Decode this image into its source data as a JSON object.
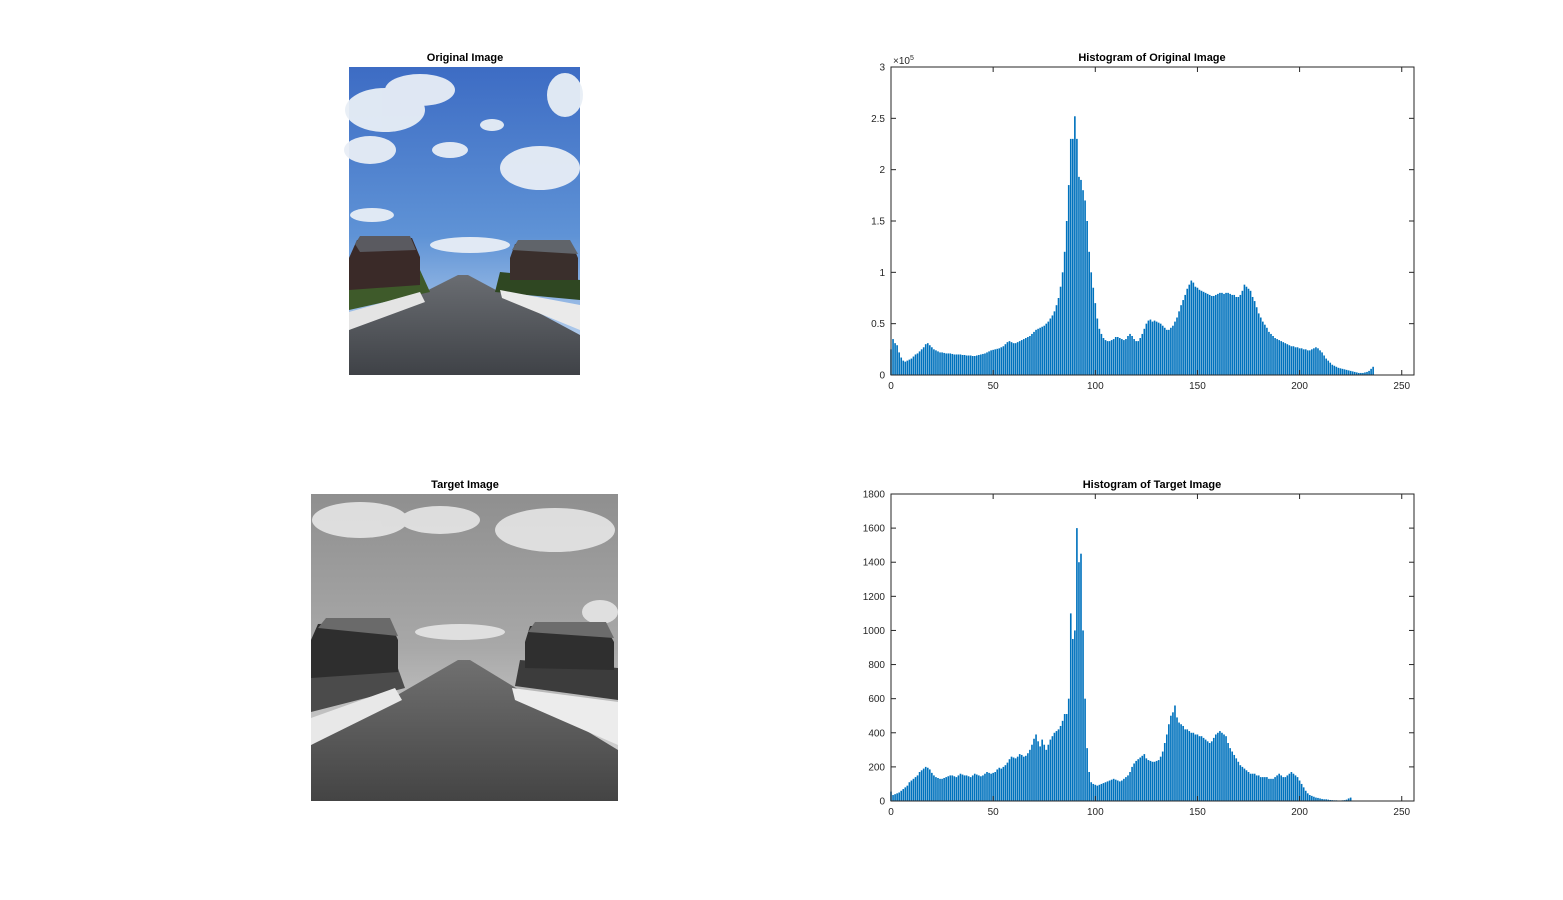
{
  "figure": {
    "background": "#ffffff",
    "bar_color": "#0072BD"
  },
  "images": {
    "original": {
      "title": "Original Image"
    },
    "target": {
      "title": "Target Image"
    }
  },
  "chart_data": [
    {
      "type": "bar",
      "title": "Histogram of Original Image",
      "xlabel": "",
      "ylabel": "",
      "xlim": [
        0,
        256
      ],
      "ylim": [
        0,
        300000
      ],
      "xticks": [
        0,
        50,
        100,
        150,
        200,
        250
      ],
      "yticks": [
        0,
        0.5,
        1,
        1.5,
        2,
        2.5,
        3
      ],
      "y_exponent_label": "×10",
      "y_exponent": "5",
      "grid": false,
      "series": [
        {
          "values": [
            25000,
            35000,
            31000,
            29000,
            22000,
            17000,
            14000,
            13000,
            14000,
            15000,
            16000,
            18000,
            20000,
            21000,
            23000,
            25000,
            27000,
            30000,
            31000,
            29000,
            27000,
            25000,
            24000,
            23000,
            22000,
            22000,
            21500,
            21000,
            21000,
            21000,
            20500,
            20000,
            20000,
            20000,
            20000,
            19500,
            19500,
            19000,
            19000,
            19000,
            18500,
            18500,
            19000,
            19500,
            20000,
            20500,
            21000,
            22000,
            23000,
            24000,
            24500,
            25000,
            25500,
            26000,
            27000,
            28000,
            30000,
            32000,
            33000,
            32000,
            31000,
            31000,
            32000,
            33000,
            34000,
            35000,
            36000,
            37000,
            38000,
            40000,
            42000,
            44000,
            45000,
            46000,
            47000,
            48000,
            50000,
            52000,
            55000,
            58000,
            62000,
            68000,
            75000,
            86000,
            100000,
            120000,
            150000,
            185000,
            230000,
            230000,
            252000,
            230000,
            193000,
            190000,
            180000,
            170000,
            150000,
            120000,
            100000,
            85000,
            70000,
            55000,
            45000,
            40000,
            36000,
            34000,
            33000,
            33000,
            34000,
            35000,
            37000,
            37000,
            36000,
            35000,
            34000,
            35000,
            38000,
            40000,
            38000,
            35000,
            33000,
            33000,
            36000,
            40000,
            45000,
            50000,
            53000,
            54000,
            52000,
            53000,
            52000,
            51000,
            50000,
            48000,
            46000,
            44000,
            44000,
            46000,
            48000,
            52000,
            56000,
            62000,
            68000,
            73000,
            78000,
            84000,
            88000,
            92000,
            90000,
            86000,
            85000,
            83000,
            82000,
            81000,
            80000,
            79000,
            78000,
            77000,
            77000,
            78000,
            79000,
            80000,
            80000,
            79000,
            80000,
            80000,
            79000,
            78000,
            78000,
            76000,
            76000,
            78000,
            82000,
            88000,
            86000,
            84000,
            82000,
            76000,
            72000,
            66000,
            60000,
            56000,
            52000,
            49000,
            46000,
            42000,
            40000,
            38000,
            36000,
            35000,
            34000,
            33000,
            32000,
            31000,
            30000,
            29000,
            28000,
            28000,
            27000,
            27000,
            26000,
            26000,
            25000,
            25000,
            24000,
            24000,
            25000,
            26000,
            27000,
            26000,
            24000,
            22000,
            19000,
            16000,
            14000,
            12000,
            10000,
            9000,
            8000,
            7000,
            6500,
            6000,
            5500,
            5000,
            4500,
            4000,
            3500,
            3000,
            2500,
            2000,
            2000,
            2000,
            2500,
            3000,
            4000,
            6000,
            8000
          ]
        }
      ]
    },
    {
      "type": "bar",
      "title": "Histogram of Target Image",
      "xlabel": "",
      "ylabel": "",
      "xlim": [
        0,
        256
      ],
      "ylim": [
        0,
        1800
      ],
      "xticks": [
        0,
        50,
        100,
        150,
        200,
        250
      ],
      "yticks": [
        0,
        200,
        400,
        600,
        800,
        1000,
        1200,
        1400,
        1600,
        1800
      ],
      "grid": false,
      "series": [
        {
          "values": [
            55,
            35,
            40,
            45,
            50,
            60,
            70,
            80,
            90,
            110,
            120,
            130,
            140,
            150,
            170,
            180,
            190,
            200,
            195,
            185,
            165,
            150,
            140,
            135,
            130,
            130,
            135,
            140,
            145,
            150,
            150,
            145,
            140,
            150,
            160,
            155,
            150,
            150,
            145,
            140,
            150,
            160,
            155,
            150,
            145,
            150,
            160,
            170,
            165,
            160,
            165,
            170,
            185,
            195,
            190,
            200,
            210,
            225,
            245,
            260,
            255,
            250,
            260,
            275,
            270,
            260,
            265,
            280,
            300,
            330,
            365,
            390,
            350,
            320,
            360,
            330,
            300,
            330,
            360,
            380,
            400,
            410,
            420,
            440,
            470,
            510,
            510,
            600,
            1100,
            950,
            1000,
            1600,
            1400,
            1450,
            1000,
            600,
            310,
            170,
            110,
            100,
            95,
            90,
            95,
            100,
            105,
            110,
            115,
            120,
            125,
            130,
            125,
            120,
            115,
            120,
            130,
            140,
            150,
            170,
            200,
            220,
            235,
            245,
            255,
            265,
            275,
            250,
            240,
            235,
            230,
            230,
            235,
            240,
            260,
            290,
            340,
            390,
            450,
            500,
            520,
            560,
            490,
            460,
            450,
            440,
            420,
            420,
            410,
            400,
            400,
            390,
            390,
            380,
            380,
            370,
            360,
            350,
            340,
            350,
            370,
            390,
            400,
            410,
            400,
            390,
            380,
            340,
            310,
            290,
            270,
            250,
            230,
            210,
            200,
            190,
            180,
            170,
            160,
            160,
            160,
            150,
            150,
            140,
            140,
            140,
            140,
            130,
            130,
            130,
            140,
            150,
            160,
            150,
            140,
            140,
            150,
            160,
            170,
            160,
            150,
            140,
            120,
            100,
            80,
            60,
            45,
            35,
            30,
            25,
            20,
            18,
            15,
            12,
            10,
            10,
            8,
            6,
            5,
            4,
            4,
            3,
            3,
            4,
            5,
            8,
            15,
            20
          ]
        }
      ]
    }
  ]
}
